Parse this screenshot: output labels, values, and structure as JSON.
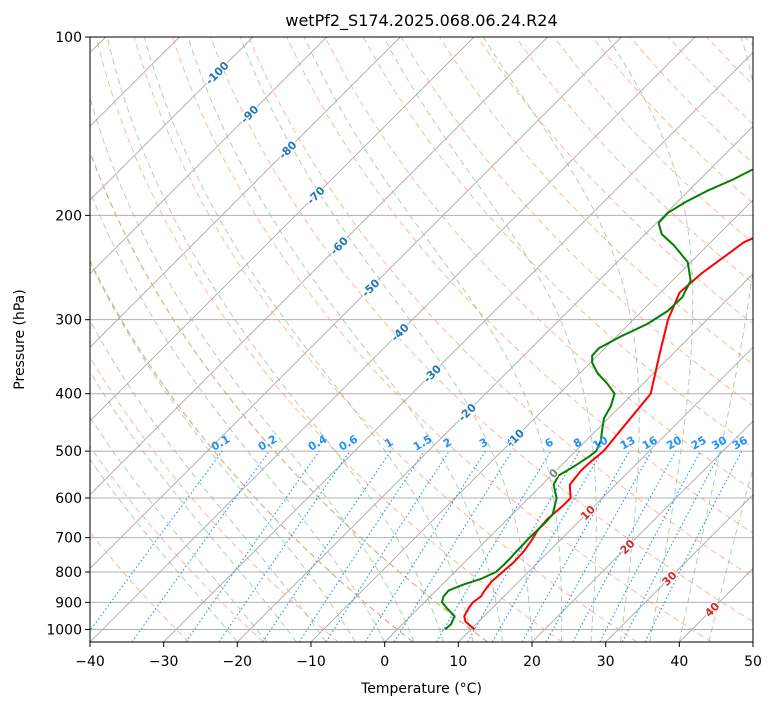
{
  "chart_data": {
    "type": "line",
    "title": "wetPf2_S174.2025.068.06.24.R24",
    "xlabel": "Temperature (°C)",
    "ylabel": "Pressure (hPa)",
    "xlim": [
      -40,
      50
    ],
    "ylim": [
      1050,
      100
    ],
    "y_scale": "log",
    "grid": true,
    "x_ticks": [
      "−40",
      "−30",
      "−20",
      "−10",
      "0",
      "10",
      "20",
      "30",
      "40",
      "50"
    ],
    "y_ticks": [
      {
        "p": 100,
        "label": "100"
      },
      {
        "p": 200,
        "label": "200"
      },
      {
        "p": 300,
        "label": "300"
      },
      {
        "p": 400,
        "label": "400"
      },
      {
        "p": 500,
        "label": "500"
      },
      {
        "p": 600,
        "label": "600"
      },
      {
        "p": 700,
        "label": "700"
      },
      {
        "p": 800,
        "label": "800"
      },
      {
        "p": 900,
        "label": "900"
      },
      {
        "p": 1000,
        "label": "1000"
      }
    ],
    "series": [
      {
        "color": "#ff0000",
        "points": [
          [
            1000,
            10.5
          ],
          [
            970,
            8.2
          ],
          [
            950,
            7.3
          ],
          [
            920,
            6.8
          ],
          [
            900,
            6.6
          ],
          [
            880,
            6.9
          ],
          [
            860,
            6.6
          ],
          [
            830,
            6.3
          ],
          [
            800,
            6.5
          ],
          [
            770,
            6.7
          ],
          [
            740,
            6.6
          ],
          [
            710,
            6.2
          ],
          [
            680,
            5.6
          ],
          [
            650,
            5.4
          ],
          [
            620,
            5.7
          ],
          [
            600,
            5.7
          ],
          [
            570,
            3.8
          ],
          [
            540,
            3.4
          ],
          [
            520,
            3.5
          ],
          [
            500,
            3.8
          ],
          [
            470,
            3.4
          ],
          [
            440,
            3.0
          ],
          [
            400,
            2.4
          ],
          [
            370,
            0.3
          ],
          [
            340,
            -2.0
          ],
          [
            300,
            -5.3
          ],
          [
            270,
            -7.4
          ],
          [
            250,
            -7.0
          ],
          [
            235,
            -6.2
          ],
          [
            222,
            -5.5
          ],
          [
            210,
            -3.0
          ],
          [
            200,
            -0.8
          ],
          [
            190,
            2.1
          ],
          [
            180,
            4.5
          ],
          [
            170,
            7.8
          ],
          [
            160,
            11.2
          ],
          [
            150,
            13.3
          ],
          [
            140,
            14.7
          ],
          [
            132,
            15.9
          ],
          [
            124,
            17.6
          ],
          [
            118,
            19.4
          ],
          [
            112,
            20.3
          ],
          [
            106,
            20.4
          ],
          [
            100,
            21.6
          ]
        ]
      },
      {
        "color": "#008000",
        "points": [
          [
            1000,
            6.5
          ],
          [
            980,
            6.6
          ],
          [
            950,
            6.0
          ],
          [
            920,
            3.8
          ],
          [
            900,
            2.4
          ],
          [
            880,
            1.8
          ],
          [
            860,
            1.7
          ],
          [
            840,
            2.9
          ],
          [
            820,
            4.6
          ],
          [
            800,
            5.6
          ],
          [
            780,
            5.7
          ],
          [
            760,
            5.7
          ],
          [
            740,
            5.6
          ],
          [
            700,
            5.5
          ],
          [
            660,
            5.6
          ],
          [
            640,
            5.5
          ],
          [
            600,
            3.8
          ],
          [
            570,
            1.6
          ],
          [
            550,
            1.0
          ],
          [
            530,
            1.9
          ],
          [
            510,
            2.6
          ],
          [
            500,
            2.8
          ],
          [
            480,
            2.0
          ],
          [
            460,
            0.7
          ],
          [
            440,
            -0.6
          ],
          [
            420,
            -1.3
          ],
          [
            400,
            -2.5
          ],
          [
            385,
            -4.8
          ],
          [
            370,
            -7.5
          ],
          [
            355,
            -9.7
          ],
          [
            345,
            -10.7
          ],
          [
            335,
            -10.8
          ],
          [
            320,
            -9.4
          ],
          [
            305,
            -7.5
          ],
          [
            290,
            -6.5
          ],
          [
            275,
            -6.4
          ],
          [
            258,
            -7.5
          ],
          [
            240,
            -10.4
          ],
          [
            225,
            -14.5
          ],
          [
            215,
            -17.8
          ],
          [
            206,
            -19.7
          ],
          [
            198,
            -19.8
          ],
          [
            190,
            -18.9
          ],
          [
            182,
            -17.5
          ],
          [
            174,
            -15.5
          ],
          [
            165,
            -13.7
          ],
          [
            158,
            -13.2
          ],
          [
            152,
            -13.5
          ],
          [
            146,
            -14.5
          ],
          [
            140,
            -15.3
          ],
          [
            134,
            -14.8
          ],
          [
            128,
            -13.3
          ],
          [
            122,
            -11.7
          ],
          [
            117,
            -10.6
          ],
          [
            112,
            -9.1
          ],
          [
            108,
            -7.3
          ],
          [
            103,
            -5.7
          ],
          [
            100,
            -4.7
          ]
        ]
      }
    ],
    "isotherm_labels": [
      "-100",
      "-90",
      "-80",
      "-70",
      "-60",
      "-50",
      "-40",
      "-30",
      "-20",
      "-10",
      "0",
      "10",
      "20",
      "30",
      "40"
    ],
    "mixing_ratio_labels": [
      "0.1",
      "0.2",
      "0.4",
      "0.6",
      "1",
      "1.5",
      "2",
      "3",
      "4",
      "6",
      "8",
      "10",
      "13",
      "16",
      "20",
      "25",
      "30",
      "36"
    ],
    "colors": {
      "temperature": "#ff0000",
      "dewpoint": "#008000",
      "dry_adiabat": "#ffa07a",
      "moist_adiabat": "#8fbc8f",
      "mixing_ratio": "#1e90ff",
      "isotherm_label_cold": "#1f77b4",
      "isotherm_label_zero": "#808080",
      "isotherm_label_warm": "#d62728",
      "isotherm_line": "#a9a9a9",
      "pressure_grid": "#b0b0b0",
      "dry_adiabat_extra": "#d2b48c"
    }
  }
}
